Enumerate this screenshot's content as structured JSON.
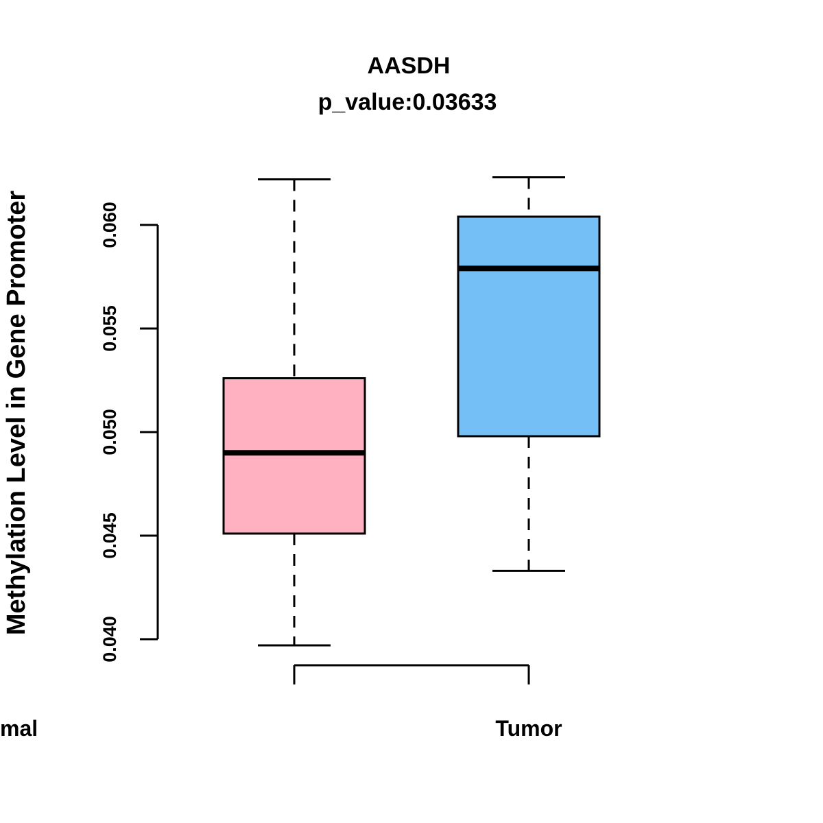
{
  "chart_data": {
    "type": "boxplot",
    "title": "AASDH",
    "subtitle": "p_value:0.03633",
    "ylabel": "Methylation Level in Gene Promoter",
    "xlabel": "",
    "categories": [
      "Tumor",
      "Normal"
    ],
    "yticks": [
      0.04,
      0.045,
      0.05,
      0.055,
      0.06
    ],
    "ytick_labels": [
      "0.040",
      "0.045",
      "0.050",
      "0.055",
      "0.060"
    ],
    "ylim": [
      0.0397,
      0.0623
    ],
    "grid": false,
    "legend": null,
    "series": [
      {
        "name": "Tumor",
        "color": "#FFB1C1",
        "border_color": "#000000",
        "lower_whisker": 0.0397,
        "q1": 0.0451,
        "median": 0.049,
        "q3": 0.0526,
        "upper_whisker": 0.0622
      },
      {
        "name": "Normal",
        "color": "#74BFF6",
        "border_color": "#000000",
        "lower_whisker": 0.0433,
        "q1": 0.0498,
        "median": 0.0579,
        "q3": 0.0604,
        "upper_whisker": 0.0623
      }
    ]
  }
}
